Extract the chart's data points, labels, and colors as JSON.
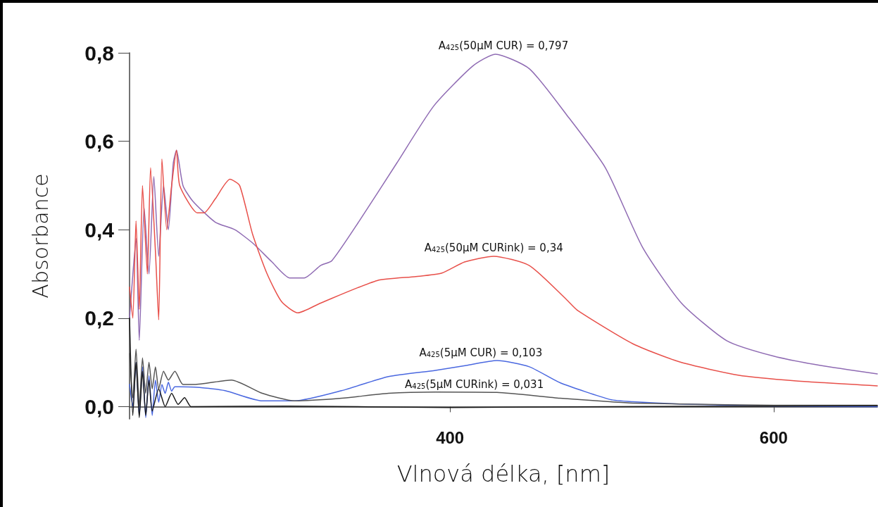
{
  "chart_data": {
    "type": "line",
    "xlabel": "Vlnová délka, [nm]",
    "ylabel": "Absorbance",
    "xlim": [
      202,
      664
    ],
    "xticks": [
      400,
      600
    ],
    "ylim": [
      -0.028,
      0.8
    ],
    "yticks": [
      {
        "value": 0,
        "label": "0,0"
      },
      {
        "value": 0.2,
        "label": "0,2"
      },
      {
        "value": 0.4,
        "label": "0,4"
      },
      {
        "value": 0.6,
        "label": "0,6"
      },
      {
        "value": 0.8,
        "label": "0,8"
      }
    ],
    "grid": false,
    "marker": "none",
    "line_style": "solid",
    "series": [
      {
        "color": "#8f6bb3",
        "x": [
          202,
          203,
          206,
          208,
          211,
          214,
          217,
          220,
          223,
          226,
          229,
          231,
          235,
          241,
          255,
          267,
          278,
          290,
          301,
          310,
          320,
          327,
          344,
          367,
          390,
          414,
          428,
          449,
          472,
          496,
          519,
          543,
          571,
          600,
          629,
          664
        ],
        "values": [
          0.2,
          0.25,
          0.38,
          0.15,
          0.45,
          0.3,
          0.52,
          0.34,
          0.5,
          0.4,
          0.55,
          0.58,
          0.5,
          0.465,
          0.417,
          0.4,
          0.37,
          0.327,
          0.291,
          0.291,
          0.319,
          0.33,
          0.42,
          0.55,
          0.68,
          0.77,
          0.797,
          0.764,
          0.66,
          0.54,
          0.36,
          0.234,
          0.149,
          0.114,
          0.093,
          0.074
        ]
      },
      {
        "color": "#e8504a",
        "x": [
          202,
          204,
          206,
          208,
          210,
          213,
          215,
          218,
          220,
          222,
          225,
          228,
          231,
          233,
          244,
          248,
          255,
          264,
          270,
          278,
          287,
          296,
          306,
          320,
          355,
          379,
          395,
          409,
          427,
          449,
          472,
          479,
          513,
          542,
          578,
          614,
          664
        ],
        "values": [
          0.27,
          0.2,
          0.42,
          0.22,
          0.5,
          0.3,
          0.54,
          0.35,
          0.196,
          0.56,
          0.4,
          0.5,
          0.58,
          0.5,
          0.438,
          0.438,
          0.47,
          0.514,
          0.5,
          0.39,
          0.3,
          0.237,
          0.212,
          0.234,
          0.285,
          0.294,
          0.302,
          0.327,
          0.34,
          0.319,
          0.242,
          0.217,
          0.142,
          0.101,
          0.071,
          0.058,
          0.047
        ]
      },
      {
        "color": "#4a68e0",
        "x": [
          202,
          204,
          206,
          208,
          210,
          212,
          214,
          216,
          218,
          220,
          222,
          224,
          226,
          228,
          230,
          242,
          261,
          284,
          304,
          333,
          362,
          391,
          410,
          429,
          449,
          468,
          499,
          513,
          542,
          600,
          664
        ],
        "values": [
          0.05,
          0.0,
          0.1,
          -0.02,
          0.09,
          -0.025,
          0.07,
          -0.02,
          0.06,
          0.01,
          0.05,
          0.03,
          0.055,
          0.035,
          0.045,
          0.044,
          0.036,
          0.013,
          0.013,
          0.036,
          0.068,
          0.082,
          0.093,
          0.104,
          0.09,
          0.054,
          0.016,
          0.011,
          0.006,
          0.001,
          0.0
        ]
      },
      {
        "color": "#555555",
        "x": [
          202,
          204,
          206,
          208,
          210,
          212,
          214,
          216,
          218,
          220,
          223,
          226,
          230,
          235,
          242,
          265,
          284,
          304,
          333,
          362,
          391,
          429,
          468,
          499,
          513,
          542,
          600,
          664
        ],
        "values": [
          0.12,
          0.02,
          0.13,
          0.0,
          0.11,
          0.03,
          0.1,
          0.04,
          0.09,
          0.04,
          0.08,
          0.06,
          0.08,
          0.05,
          0.05,
          0.06,
          0.03,
          0.013,
          0.019,
          0.03,
          0.033,
          0.032,
          0.019,
          0.011,
          0.008,
          0.006,
          0.003,
          0.003
        ]
      },
      {
        "color": "#1a1a1a",
        "x": [
          202,
          204,
          206,
          208,
          210,
          212,
          214,
          216,
          220,
          224,
          228,
          232,
          236,
          240,
          300,
          400,
          500,
          600,
          664
        ],
        "values": [
          0.2,
          -0.02,
          0.1,
          -0.025,
          0.08,
          -0.02,
          0.06,
          -0.01,
          0.04,
          0.0,
          0.03,
          0.005,
          0.02,
          0.0,
          0.001,
          -0.002,
          0.0,
          0.001,
          0.002
        ]
      }
    ],
    "annotations": [
      {
        "text": "A$_{425}$(50µM CUR) = 0,797",
        "x": 433,
        "y": 0.797
      },
      {
        "text": "A$_{425}$(50µM CURink) = 0,34",
        "x": 427,
        "y": 0.34
      },
      {
        "text": "A$_{425}$(5µM CUR) = 0,103",
        "x": 419,
        "y": 0.103
      },
      {
        "text": "A$_{425}$(5µM CURink) = 0,031",
        "x": 415,
        "y": 0.031
      }
    ]
  }
}
